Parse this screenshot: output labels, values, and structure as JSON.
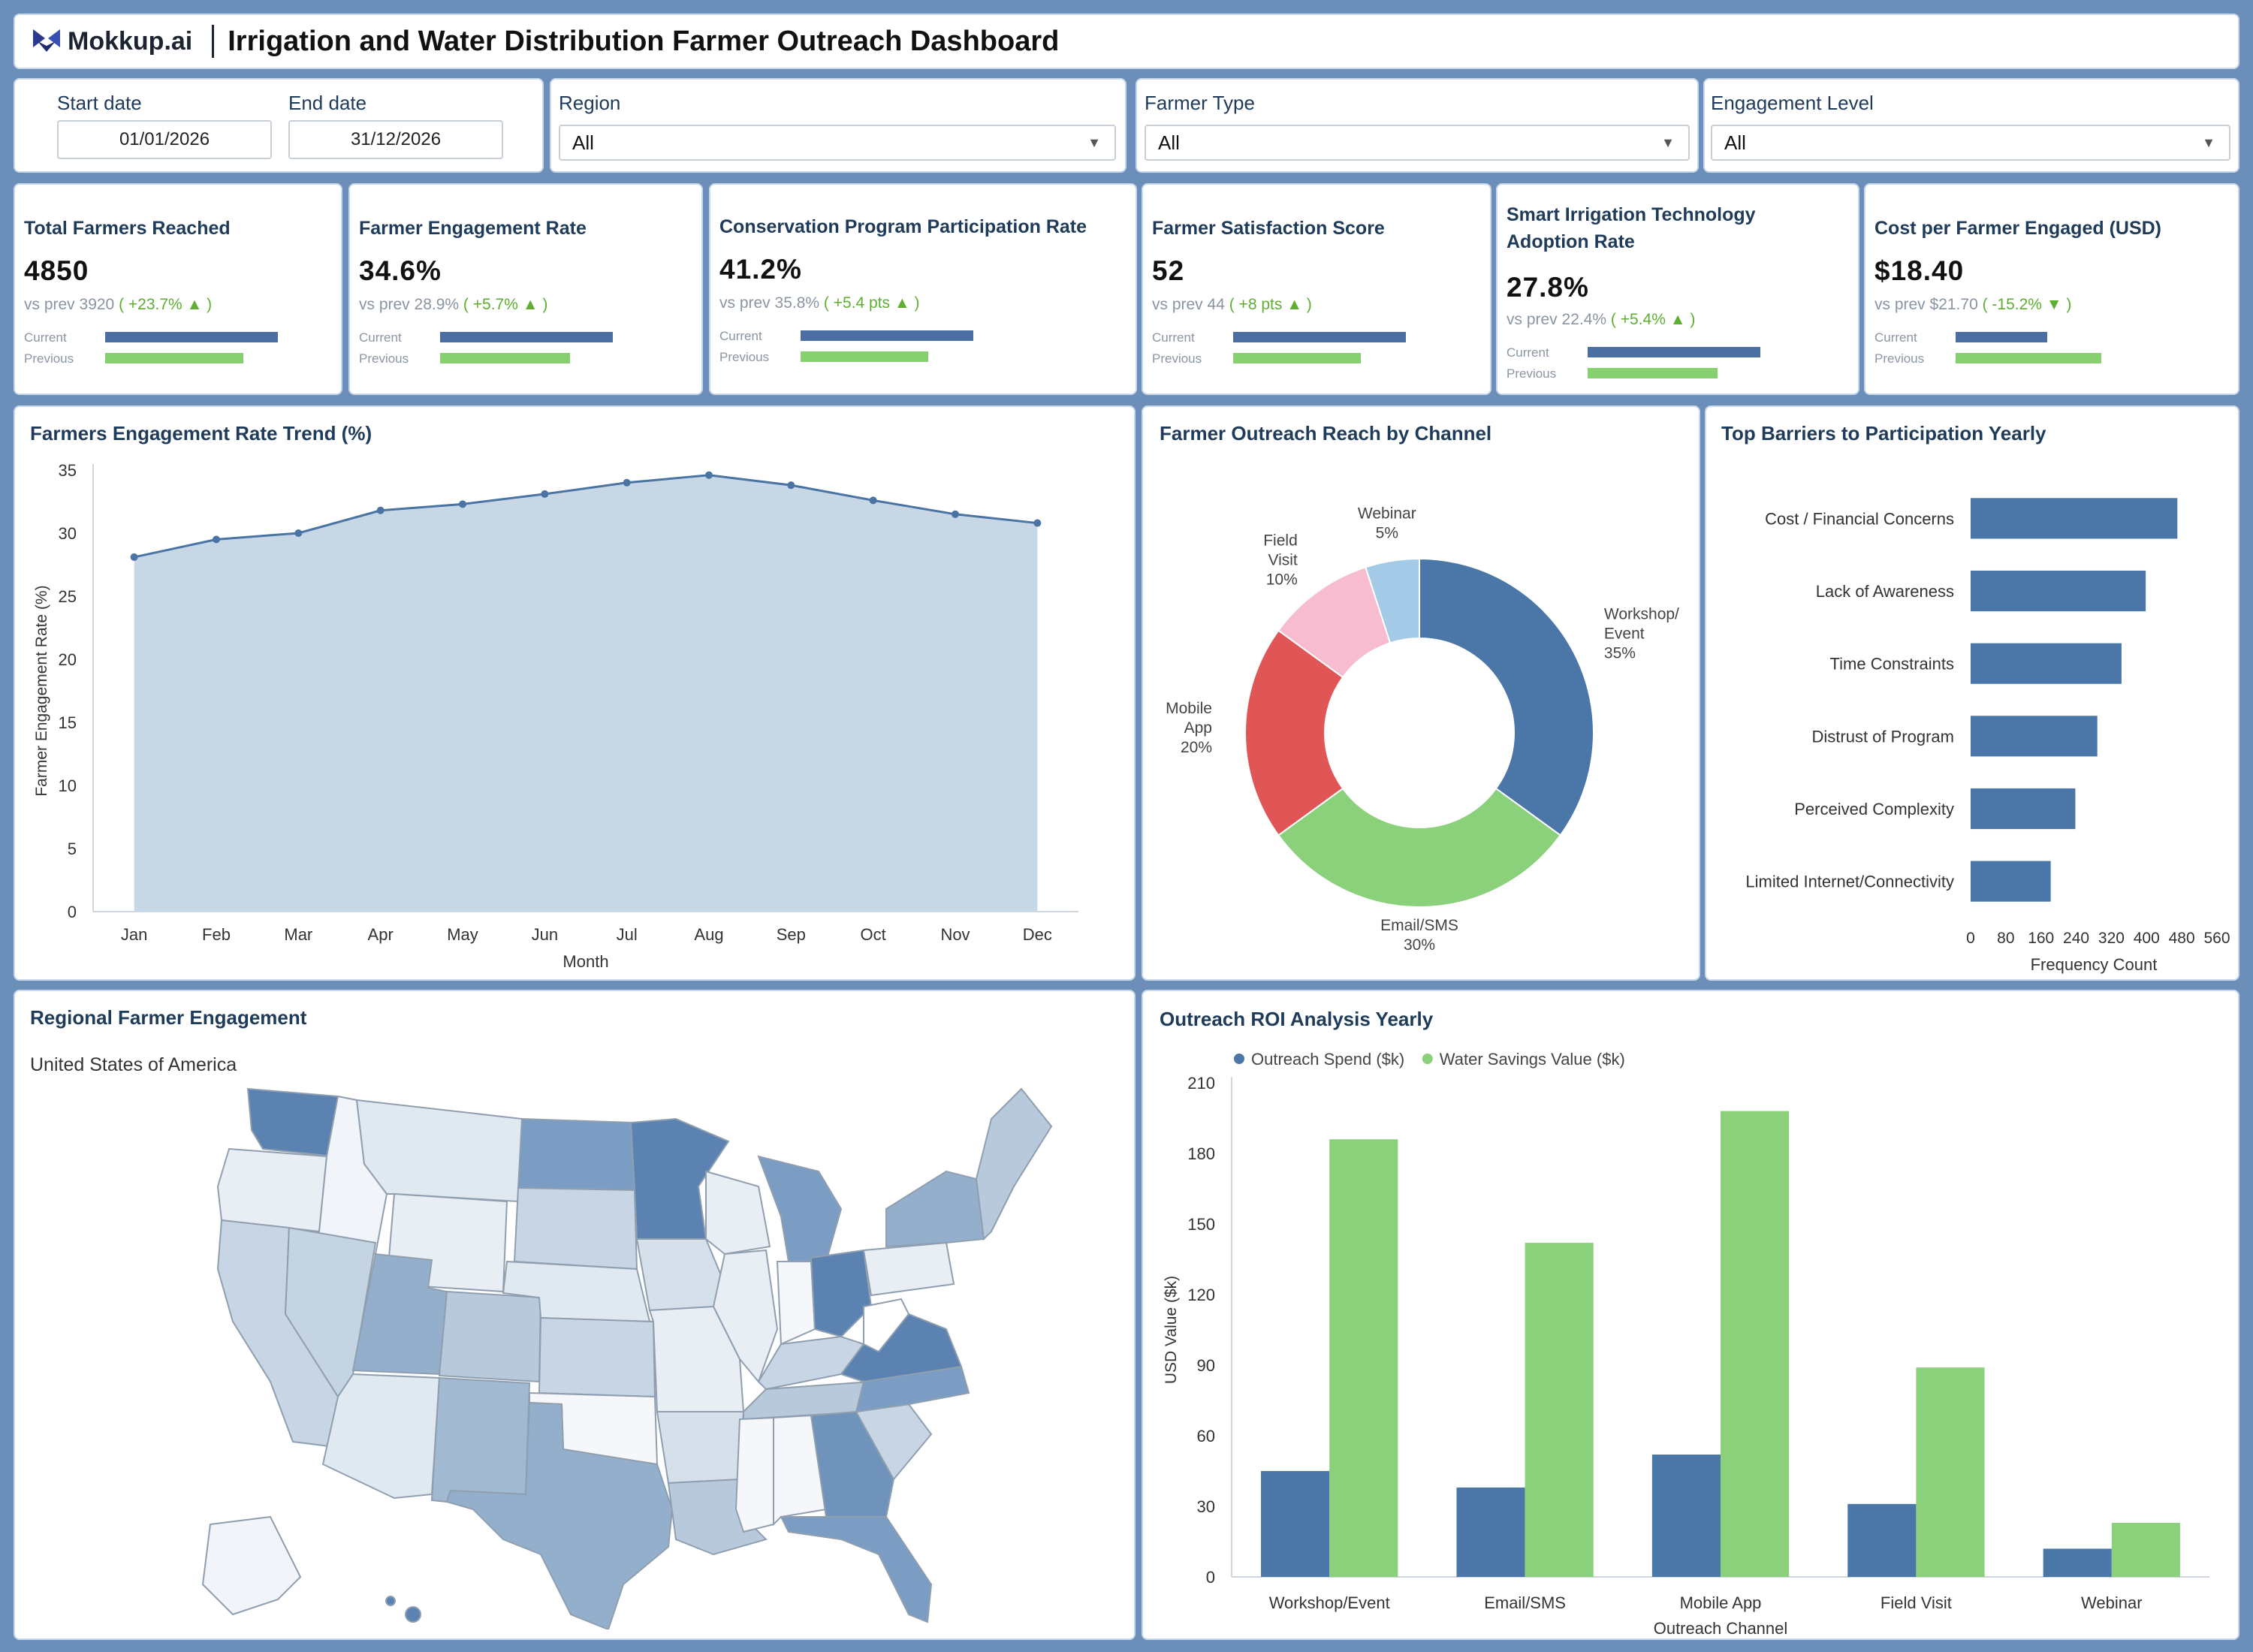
{
  "header": {
    "logo_text": "Mokkup.ai",
    "title": "Irrigation and Water Distribution Farmer Outreach Dashboard"
  },
  "filters": {
    "start_label": "Start date",
    "start_value": "01/01/2026",
    "end_label": "End date",
    "end_value": "31/12/2026",
    "region_label": "Region",
    "region_value": "All",
    "farmer_type_label": "Farmer Type",
    "farmer_type_value": "All",
    "engagement_label": "Engagement Level",
    "engagement_value": "All"
  },
  "kpis": [
    {
      "title": "Total Farmers Reached",
      "value": "4850",
      "prev": "vs prev 3920",
      "change": "( +23.7% ▲ )",
      "current_label": "Current",
      "previous_label": "Previous",
      "current_frac": 0.85,
      "previous_frac": 0.68
    },
    {
      "title": "Farmer Engagement Rate",
      "value": "34.6%",
      "prev": "vs prev 28.9%",
      "change": "( +5.7% ▲ )",
      "current_label": "Current",
      "previous_label": "Previous",
      "current_frac": 0.85,
      "previous_frac": 0.64
    },
    {
      "title": "Conservation Program Participation Rate",
      "value": "41.2%",
      "prev": "vs prev 35.8%",
      "change": "( +5.4 pts ▲ )",
      "current_label": "Current",
      "previous_label": "Previous",
      "current_frac": 0.85,
      "previous_frac": 0.63
    },
    {
      "title": "Farmer Satisfaction Score",
      "value": "52",
      "prev": "vs prev 44",
      "change": "( +8 pts ▲ )",
      "current_label": "Current",
      "previous_label": "Previous",
      "current_frac": 0.85,
      "previous_frac": 0.63
    },
    {
      "title": "Smart Irrigation Technology Adoption Rate",
      "value": "27.8%",
      "prev": "vs prev 22.4%",
      "change": "( +5.4% ▲ )",
      "current_label": "Current",
      "previous_label": "Previous",
      "current_frac": 0.85,
      "previous_frac": 0.64
    },
    {
      "title": "Cost per Farmer Engaged (USD)",
      "value": "$18.40",
      "prev": "vs prev $21.70",
      "change": "( -15.2% ▼ )",
      "current_label": "Current",
      "previous_label": "Previous",
      "current_frac": 0.45,
      "previous_frac": 0.72
    }
  ],
  "panels": {
    "trend_title": "Farmers Engagement Rate Trend (%)",
    "channel_title": "Farmer Outreach Reach by Channel",
    "barriers_title": "Top Barriers to Participation Yearly",
    "map_title": "Regional Farmer Engagement",
    "map_subtitle": "United States of America",
    "roi_title": "Outreach ROI Analysis Yearly"
  },
  "chart_data": [
    {
      "type": "area",
      "title": "Farmers Engagement Rate Trend (%)",
      "xlabel": "Month",
      "ylabel": "Farmer Engagement Rate (%)",
      "categories": [
        "Jan",
        "Feb",
        "Mar",
        "Apr",
        "May",
        "Jun",
        "Jul",
        "Aug",
        "Sep",
        "Oct",
        "Nov",
        "Dec"
      ],
      "values": [
        28.1,
        29.5,
        30.0,
        31.8,
        32.3,
        33.1,
        34.0,
        34.6,
        33.8,
        32.6,
        31.5,
        30.8
      ],
      "ylim": [
        0,
        35
      ],
      "yticks": [
        0,
        5,
        10,
        15,
        20,
        25,
        30,
        35
      ],
      "colors": {
        "line": "#4a74a4",
        "fill": "#c8d7e6"
      }
    },
    {
      "type": "pie",
      "title": "Farmer Outreach Reach by Channel",
      "donut": true,
      "slices": [
        {
          "label": "Workshop/ Event",
          "value": 35,
          "pct": "35%",
          "color": "#4a76a8"
        },
        {
          "label": "Email/SMS",
          "value": 30,
          "pct": "30%",
          "color": "#8bd17c"
        },
        {
          "label": "Mobile App",
          "value": 20,
          "pct": "20%",
          "color": "#e05656"
        },
        {
          "label": "Field Visit",
          "value": 10,
          "pct": "10%",
          "color": "#f7bcd0"
        },
        {
          "label": "Webinar",
          "value": 5,
          "pct": "5%",
          "color": "#a3cbe8"
        }
      ]
    },
    {
      "type": "bar",
      "orientation": "horizontal",
      "title": "Top Barriers to Participation Yearly",
      "xlabel": "Frequency Count",
      "categories": [
        "Cost / Financial Concerns",
        "Lack of Awareness",
        "Time Constraints",
        "Distrust of Program",
        "Perceived Complexity",
        "Limited Internet/Connectivity"
      ],
      "values": [
        470,
        398,
        343,
        288,
        238,
        182
      ],
      "xlim": [
        0,
        560
      ],
      "xticks": [
        0,
        80,
        160,
        240,
        320,
        400,
        480,
        560
      ],
      "color": "#4a76a8"
    },
    {
      "type": "bar",
      "title": "Outreach ROI Analysis Yearly",
      "xlabel": "Outreach Channel",
      "ylabel": "USD Value ($k)",
      "categories": [
        "Workshop/Event",
        "Email/SMS",
        "Mobile App",
        "Field Visit",
        "Webinar"
      ],
      "series": [
        {
          "name": "Outreach Spend ($k)",
          "values": [
            45,
            38,
            52,
            31,
            12
          ],
          "color": "#4a76a8"
        },
        {
          "name": "Water Savings Value ($k)",
          "values": [
            186,
            142,
            198,
            89,
            23
          ],
          "color": "#8bd17c"
        }
      ],
      "ylim": [
        0,
        210
      ],
      "yticks": [
        0,
        30,
        60,
        90,
        120,
        150,
        180,
        210
      ],
      "legend": "top-left"
    }
  ]
}
